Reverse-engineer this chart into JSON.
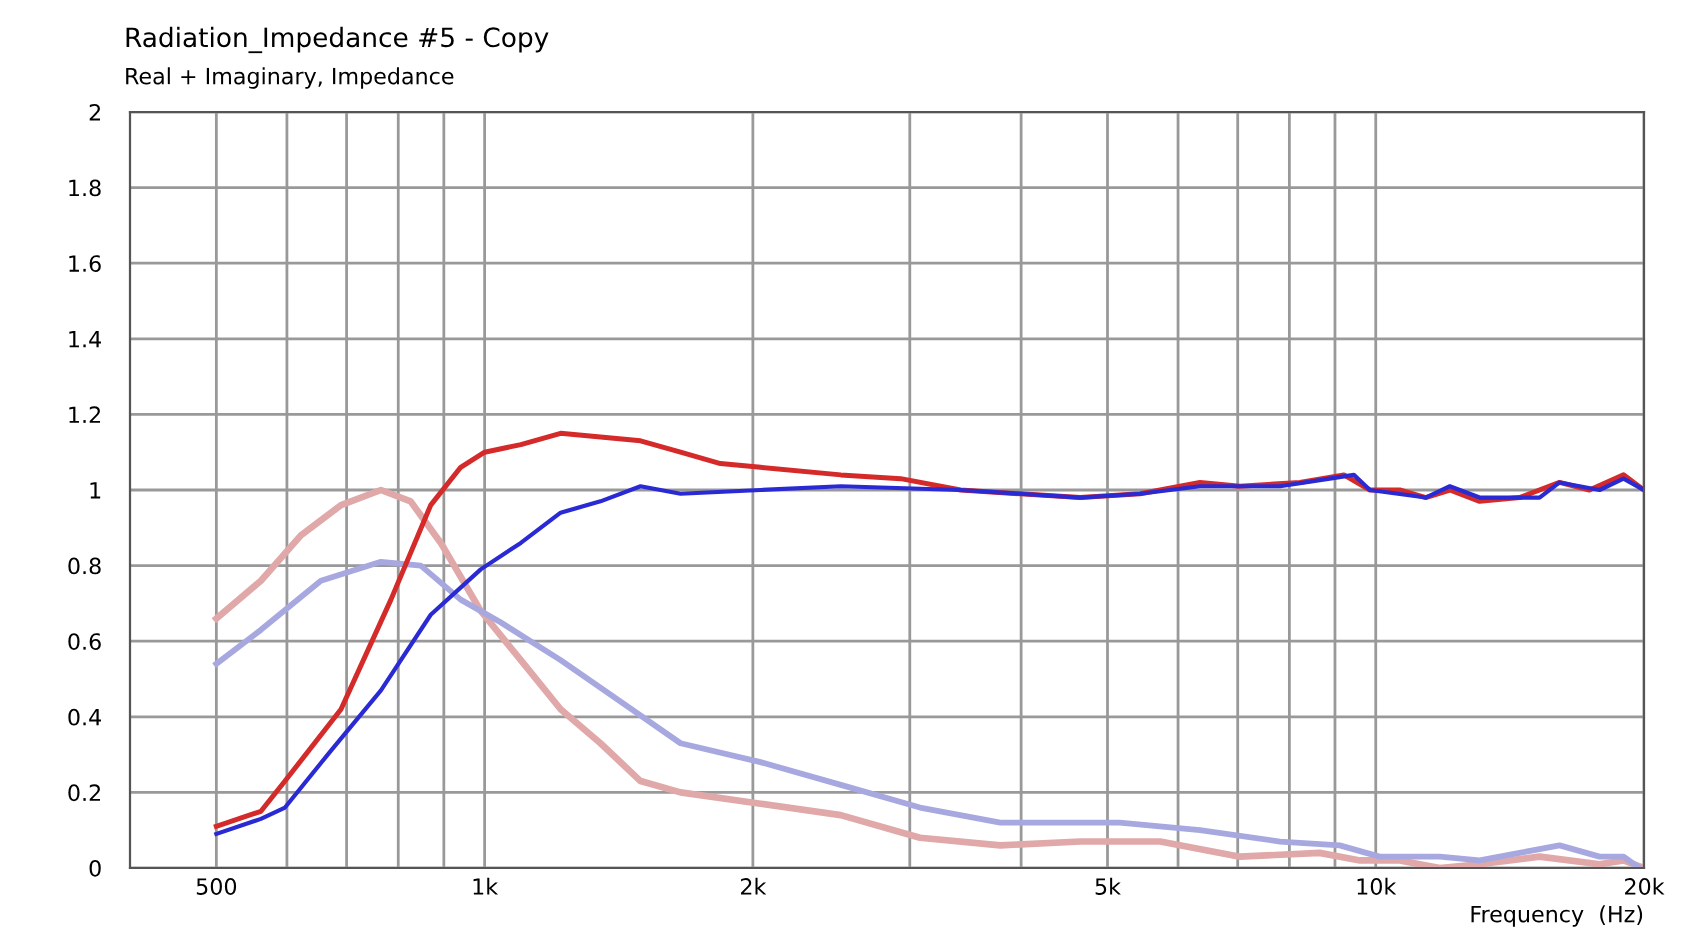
{
  "chart_data": {
    "type": "line",
    "title": "Radiation_Impedance #5 - Copy",
    "subtitle": "Real + Imaginary, Impedance",
    "xlabel": "Frequency  (Hz)",
    "log": "x",
    "grid": true,
    "marker": "none",
    "line_style": "solid",
    "xlim": [
      400,
      20000
    ],
    "ylim": [
      0,
      2
    ],
    "xticks": [
      {
        "value": 500,
        "label": "500"
      },
      {
        "value": 600,
        "label": null
      },
      {
        "value": 700,
        "label": null
      },
      {
        "value": 800,
        "label": null
      },
      {
        "value": 900,
        "label": null
      },
      {
        "value": 1000,
        "label": "1k"
      },
      {
        "value": 2000,
        "label": "2k"
      },
      {
        "value": 3000,
        "label": null
      },
      {
        "value": 4000,
        "label": null
      },
      {
        "value": 5000,
        "label": "5k"
      },
      {
        "value": 6000,
        "label": null
      },
      {
        "value": 7000,
        "label": null
      },
      {
        "value": 8000,
        "label": null
      },
      {
        "value": 9000,
        "label": null
      },
      {
        "value": 10000,
        "label": "10k"
      },
      {
        "value": 20000,
        "label": "20k"
      }
    ],
    "yticks": [
      0,
      0.2,
      0.4,
      0.6,
      0.8,
      1,
      1.2,
      1.4,
      1.6,
      1.8,
      2
    ],
    "series": [
      {
        "color": "#e0a8a8",
        "x": [
          500,
          561,
          622,
          690,
          765,
          826,
          893,
          990,
          1098,
          1217,
          1349,
          1496,
          1659,
          2040,
          2510,
          3080,
          3790,
          4660,
          5730,
          7040,
          8650,
          9600,
          10640,
          11800,
          13080,
          15270,
          17830,
          18970,
          20000
        ],
        "values": [
          0.66,
          0.76,
          0.88,
          0.96,
          1.0,
          0.97,
          0.86,
          0.68,
          0.55,
          0.42,
          0.33,
          0.23,
          0.2,
          0.17,
          0.14,
          0.08,
          0.06,
          0.07,
          0.07,
          0.03,
          0.04,
          0.02,
          0.02,
          0.0,
          0.01,
          0.03,
          0.01,
          0.02,
          0.0
        ]
      },
      {
        "color": "#a8a8e0",
        "x": [
          500,
          561,
          655,
          765,
          848,
          940,
          1042,
          1217,
          1421,
          1659,
          2040,
          2510,
          3080,
          3790,
          5160,
          6350,
          7810,
          9110,
          10100,
          11800,
          13080,
          14500,
          16080,
          17830,
          18970,
          19770
        ],
        "values": [
          0.54,
          0.63,
          0.76,
          0.81,
          0.8,
          0.71,
          0.65,
          0.55,
          0.44,
          0.33,
          0.28,
          0.22,
          0.16,
          0.12,
          0.12,
          0.1,
          0.07,
          0.06,
          0.03,
          0.03,
          0.02,
          0.04,
          0.06,
          0.03,
          0.03,
          0.0
        ]
      },
      {
        "color": "#d42a2a",
        "x": [
          500,
          561,
          597,
          690,
          785,
          870,
          940,
          1000,
          1098,
          1217,
          1349,
          1496,
          1659,
          1839,
          2040,
          2510,
          2930,
          3420,
          3990,
          4660,
          5440,
          6350,
          7040,
          8220,
          9210,
          9850,
          10640,
          11380,
          12110,
          13080,
          14500,
          16080,
          17370,
          18970,
          20000
        ],
        "values": [
          0.11,
          0.15,
          0.23,
          0.42,
          0.71,
          0.96,
          1.06,
          1.1,
          1.12,
          1.15,
          1.14,
          1.13,
          1.1,
          1.07,
          1.06,
          1.04,
          1.03,
          1.0,
          0.99,
          0.98,
          0.99,
          1.02,
          1.01,
          1.02,
          1.04,
          1.0,
          1.0,
          0.98,
          1.0,
          0.97,
          0.98,
          1.02,
          1.0,
          1.04,
          1.0
        ]
      },
      {
        "color": "#2a2ad4",
        "x": [
          500,
          561,
          597,
          672,
          765,
          870,
          990,
          1098,
          1217,
          1349,
          1496,
          1659,
          2040,
          2510,
          3420,
          3990,
          4660,
          5440,
          6350,
          7810,
          8880,
          9450,
          9850,
          11380,
          12110,
          13080,
          15270,
          16080,
          17830,
          18970,
          20000
        ],
        "values": [
          0.09,
          0.13,
          0.16,
          0.31,
          0.47,
          0.67,
          0.79,
          0.86,
          0.94,
          0.97,
          1.01,
          0.99,
          1.0,
          1.01,
          1.0,
          0.99,
          0.98,
          0.99,
          1.01,
          1.01,
          1.03,
          1.04,
          1.0,
          0.98,
          1.01,
          0.98,
          0.98,
          1.02,
          1.0,
          1.03,
          1.0
        ]
      }
    ]
  }
}
